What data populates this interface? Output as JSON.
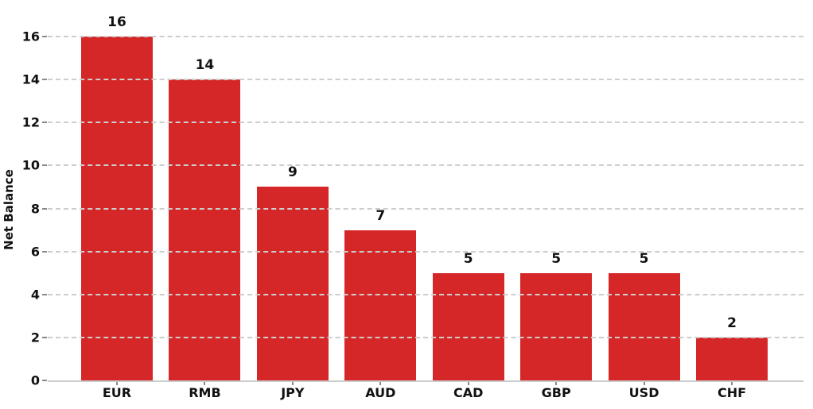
{
  "chart_data": {
    "type": "bar",
    "categories": [
      "EUR",
      "RMB",
      "JPY",
      "AUD",
      "CAD",
      "GBP",
      "USD",
      "CHF"
    ],
    "values": [
      16,
      14,
      9,
      7,
      5,
      5,
      5,
      2
    ],
    "value_labels": [
      "16",
      "14",
      "9",
      "7",
      "5",
      "5",
      "5",
      "2"
    ],
    "title": "",
    "xlabel": "",
    "ylabel": "Net Balance",
    "ylim": [
      0,
      16
    ],
    "yticks": [
      0,
      2,
      4,
      6,
      8,
      10,
      12,
      14,
      16
    ],
    "grid": "horizontal dashed, drawn over bars",
    "legend": "none",
    "colors": {
      "bar": "#d62728",
      "gridline": "#cdcdcd",
      "axis_line": "#cccccc",
      "tick_mark": "#8a8a8a",
      "text": "#111111",
      "background": "#ffffff"
    }
  }
}
